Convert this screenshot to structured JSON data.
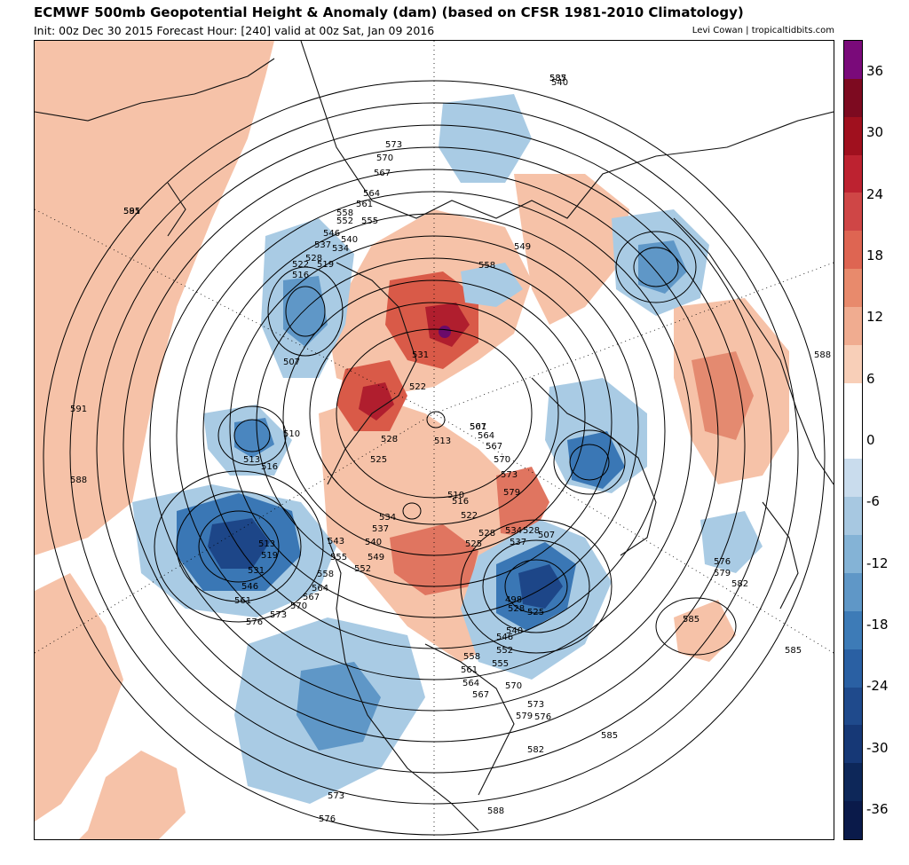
{
  "header": {
    "title": "ECMWF 500mb Geopotential Height & Anomaly (dam) (based on CFSR 1981-2010 Climatology)",
    "subtitle": "Init: 00z Dec 30 2015   Forecast Hour: [240]   valid at 00z Sat, Jan 09 2016",
    "credit": "Levi Cowan | tropicaltidbits.com"
  },
  "colorbar": {
    "ticks": [
      "36",
      "30",
      "24",
      "18",
      "12",
      "6",
      "0",
      "-6",
      "-12",
      "-18",
      "-24",
      "-30",
      "-36"
    ],
    "bands": [
      "#7a0a7a",
      "#7d0a20",
      "#a0101e",
      "#bd2230",
      "#cf4646",
      "#de6552",
      "#e88a6c",
      "#f0ac90",
      "#f8cfb8",
      "#ffffff",
      "#ffffff",
      "#c9dced",
      "#a7c8e1",
      "#84b3d6",
      "#5f97c7",
      "#3d7bb7",
      "#2a60a3",
      "#1f4a8c",
      "#163876",
      "#0d2759",
      "#0a1a4a"
    ]
  },
  "colors": {
    "anomaly_positive": "#f5b89c",
    "anomaly_strong_positive": "#c0283a",
    "anomaly_negative": "#9fc4e0",
    "anomaly_strong_negative": "#1f4a8c"
  },
  "contour_labels": [
    "585",
    "591",
    "591",
    "588",
    "573",
    "570",
    "567",
    "564",
    "561",
    "558",
    "552",
    "555",
    "546",
    "540",
    "537",
    "534",
    "528",
    "522",
    "519",
    "516",
    "507",
    "510",
    "513",
    "516",
    "513",
    "519",
    "531",
    "546",
    "561",
    "576",
    "573",
    "570",
    "567",
    "564",
    "558",
    "552",
    "555",
    "549",
    "540",
    "537",
    "534",
    "543",
    "531",
    "528",
    "525",
    "522",
    "513",
    "507",
    "528",
    "510",
    "516",
    "522",
    "525",
    "528",
    "534",
    "537",
    "507",
    "498",
    "525",
    "528",
    "540",
    "546",
    "552",
    "555",
    "558",
    "561",
    "564",
    "567",
    "570",
    "573",
    "576",
    "579",
    "582",
    "585",
    "588",
    "576",
    "579",
    "582",
    "585",
    "585",
    "588",
    "573",
    "576",
    "579",
    "573",
    "570",
    "567",
    "564",
    "561",
    "558",
    "549",
    "540",
    "537",
    "585"
  ]
}
